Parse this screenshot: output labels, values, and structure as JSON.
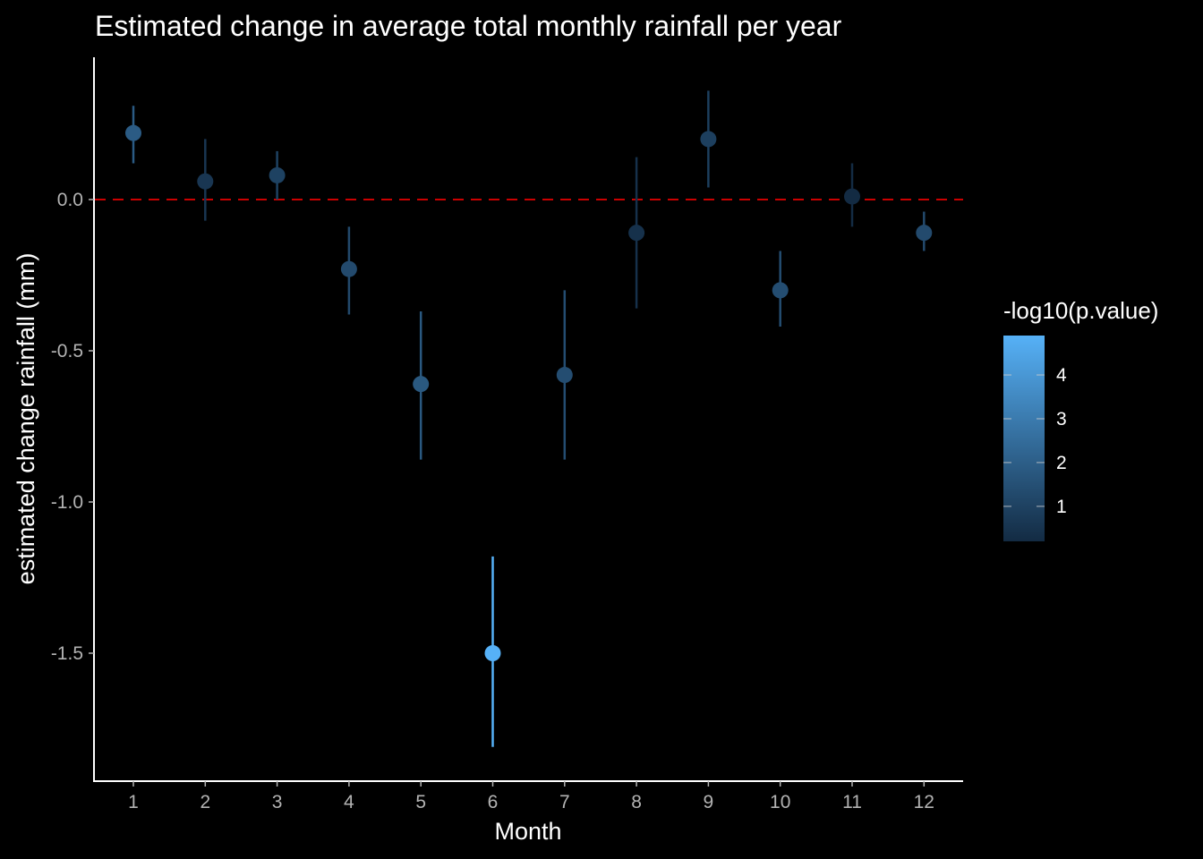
{
  "chart_data": {
    "type": "scatter",
    "title": "Estimated change in average total monthly rainfall per year",
    "xlabel": "Month",
    "ylabel": "estimated change rainfall (mm)",
    "x_ticks": [
      "1",
      "2",
      "3",
      "4",
      "5",
      "6",
      "7",
      "8",
      "9",
      "10",
      "11",
      "12"
    ],
    "y_ticks": [
      "0.0",
      "-0.5",
      "-1.0",
      "-1.5"
    ],
    "ylim": [
      -1.92,
      0.47
    ],
    "reference_line": {
      "y": 0.0,
      "style": "dashed",
      "color": "#cc0000"
    },
    "points": [
      {
        "month": 1,
        "estimate": 0.22,
        "lower": 0.12,
        "upper": 0.31,
        "neg_log10_p": 1.9
      },
      {
        "month": 2,
        "estimate": 0.06,
        "lower": -0.07,
        "upper": 0.2,
        "neg_log10_p": 0.6
      },
      {
        "month": 3,
        "estimate": 0.08,
        "lower": 0.0,
        "upper": 0.16,
        "neg_log10_p": 1.0
      },
      {
        "month": 4,
        "estimate": -0.23,
        "lower": -0.38,
        "upper": -0.09,
        "neg_log10_p": 1.3
      },
      {
        "month": 5,
        "estimate": -0.61,
        "lower": -0.86,
        "upper": -0.37,
        "neg_log10_p": 1.8
      },
      {
        "month": 6,
        "estimate": -1.5,
        "lower": -1.81,
        "upper": -1.18,
        "neg_log10_p": 4.9
      },
      {
        "month": 7,
        "estimate": -0.58,
        "lower": -0.86,
        "upper": -0.3,
        "neg_log10_p": 1.4
      },
      {
        "month": 8,
        "estimate": -0.11,
        "lower": -0.36,
        "upper": 0.14,
        "neg_log10_p": 0.4
      },
      {
        "month": 9,
        "estimate": 0.2,
        "lower": 0.04,
        "upper": 0.36,
        "neg_log10_p": 0.9
      },
      {
        "month": 10,
        "estimate": -0.3,
        "lower": -0.42,
        "upper": -0.17,
        "neg_log10_p": 1.4
      },
      {
        "month": 11,
        "estimate": 0.01,
        "lower": -0.09,
        "upper": 0.12,
        "neg_log10_p": 0.2
      },
      {
        "month": 12,
        "estimate": -0.11,
        "lower": -0.17,
        "upper": -0.04,
        "neg_log10_p": 1.3
      }
    ],
    "legend": {
      "title": "-log10(p.value)",
      "ticks": [
        "1",
        "2",
        "3",
        "4"
      ],
      "range": [
        0.2,
        4.9
      ],
      "color_low": "#132b43",
      "color_high": "#56b1f7",
      "placement": "right"
    },
    "grid": false
  }
}
